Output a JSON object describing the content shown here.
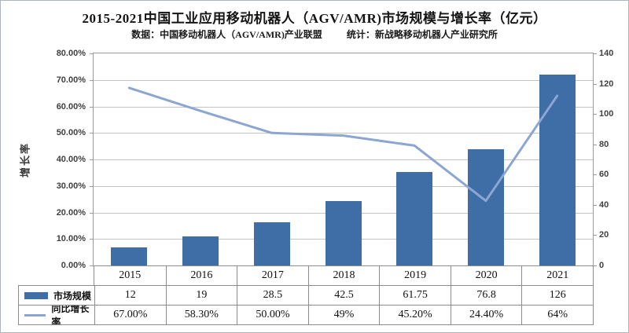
{
  "header": {
    "title": "2015-2021中国工业应用移动机器人（AGV/AMR)市场规模与增长率（亿元）",
    "subtitle_left": "数据：中国移动机器人（AGV/AMR)产业联盟",
    "subtitle_right": "统计：新战略移动机器人产业研究所"
  },
  "chart_data": {
    "type": "bar",
    "subtype": "bar+line combo with data table",
    "categories": [
      "2015",
      "2016",
      "2017",
      "2018",
      "2019",
      "2020",
      "2021"
    ],
    "series": [
      {
        "name": "市场规模",
        "type": "bar",
        "axis": "right",
        "values": [
          12,
          19,
          28.5,
          42.5,
          61.75,
          76.8,
          126
        ],
        "labels": [
          "12",
          "19",
          "28.5",
          "42.5",
          "61.75",
          "76.8",
          "126"
        ],
        "color": "#3f6da5"
      },
      {
        "name": "同比增长率",
        "type": "line",
        "axis": "left",
        "values": [
          67,
          58.3,
          50,
          49,
          45.2,
          24.4,
          64
        ],
        "labels": [
          "67.00%",
          "58.30%",
          "50.00%",
          "49%",
          "45.20%",
          "24.40%",
          "64%"
        ],
        "color": "#8ba6d2"
      }
    ],
    "left_axis": {
      "title": "增长率",
      "min": 0,
      "max": 80,
      "step": 10,
      "tick_labels": [
        "0.00%",
        "10.00%",
        "20.00%",
        "30.00%",
        "40.00%",
        "50.00%",
        "60.00%",
        "70.00%",
        "80.00%"
      ]
    },
    "right_axis": {
      "min": 0,
      "max": 140,
      "step": 20,
      "tick_labels": [
        "0",
        "20",
        "40",
        "60",
        "80",
        "100",
        "120",
        "140"
      ]
    },
    "grid": true,
    "legend_position": "data-table-left"
  },
  "colors": {
    "bar": "#3f6da5",
    "line": "#8ba6d2",
    "gridline": "#c3c3c3",
    "axis": "#9a9a9a",
    "table_border": "#8c8c8c",
    "tick_text": "#3f3f3f",
    "frame_border": "#aeb4bc"
  }
}
